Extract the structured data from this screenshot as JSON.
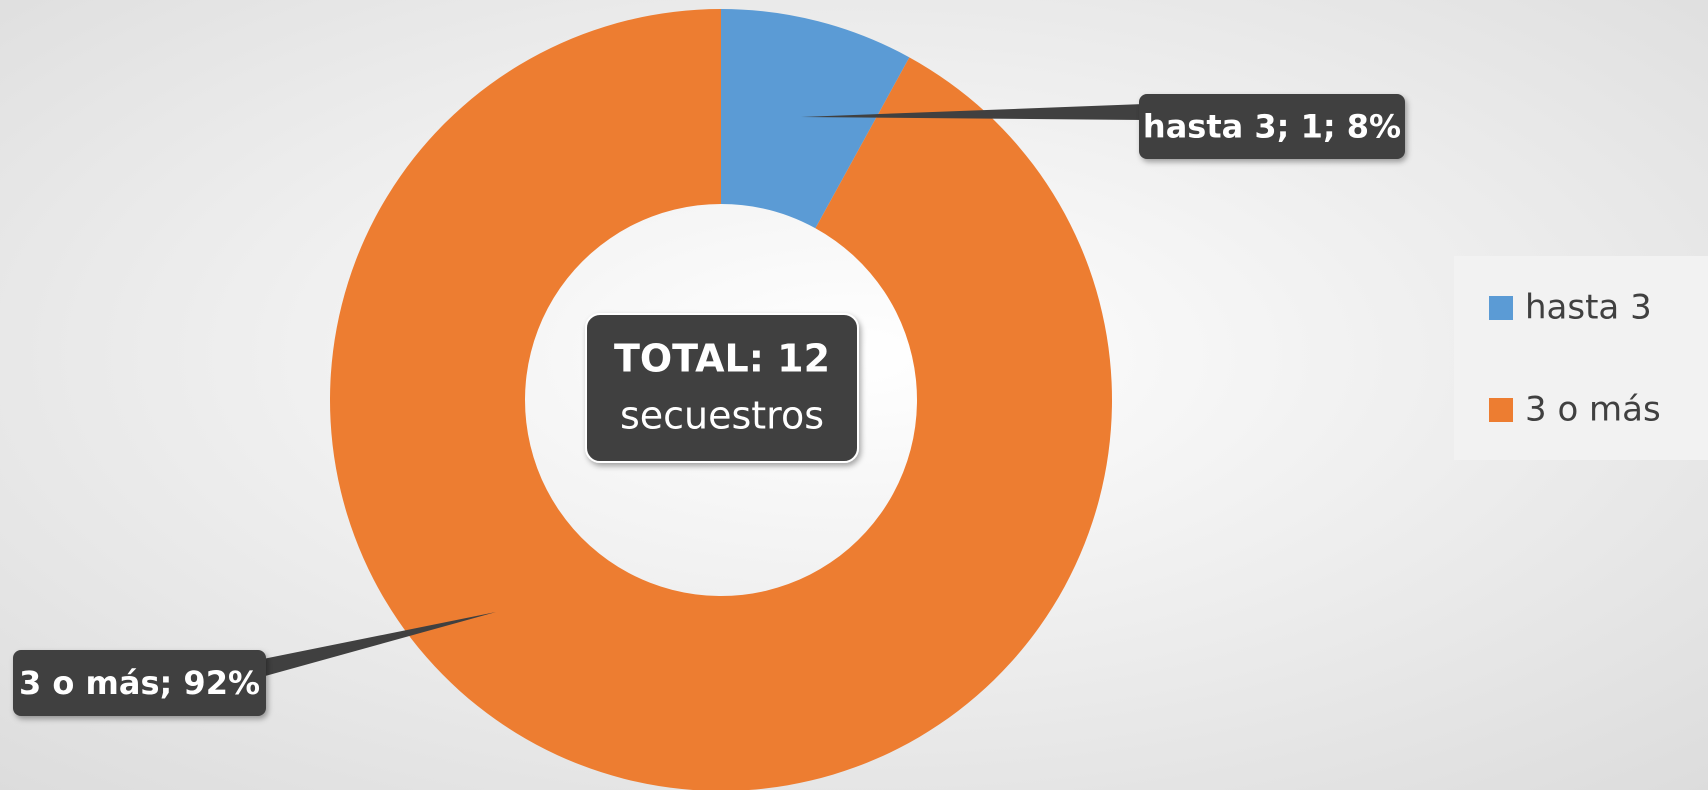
{
  "chart_data": {
    "type": "donut",
    "categories": [
      "hasta 3",
      "3 o más"
    ],
    "values": [
      8,
      92
    ],
    "value_labels": [
      "hasta 3; 1; 8%",
      "3 o más; 92%"
    ],
    "colors": [
      "#5b9bd5",
      "#ed7d31"
    ],
    "annotations": [
      "TOTAL: 12",
      "secuestros"
    ],
    "legend": "right"
  }
}
